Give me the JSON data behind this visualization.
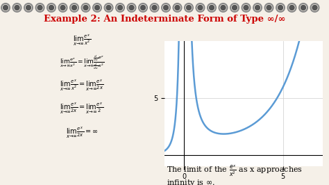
{
  "title": "Example 2: An Indeterminate Form of Type ∞/∞",
  "title_color": "#cc0000",
  "bg_color": "#f5f0e8",
  "notebook_bg": "#f5f0e8",
  "graph_xlim": [
    -1,
    7
  ],
  "graph_ylim": [
    -1,
    10
  ],
  "graph_xticks": [
    0,
    5
  ],
  "graph_yticks": [
    5
  ],
  "curve_color": "#5b9bd5",
  "curve_linewidth": 1.8,
  "spiral_color": "#555555",
  "text_lines": [
    "lim  e^x / x^2",
    "lim  e^x / x^2 = lim  (d/dx e^x) / (d/dx x^2)",
    "lim  e^x / x^2 = lim  e^x / 2x",
    "lim  e^x / 2x = lim  e^x / 2",
    "lim  e^x / 2x = ∞"
  ],
  "bottom_text_line1": "The limit of the",
  "bottom_text_line2": "as x approaches",
  "bottom_text_line3": "infinity is ∞.",
  "formula": "e^x / x^2"
}
